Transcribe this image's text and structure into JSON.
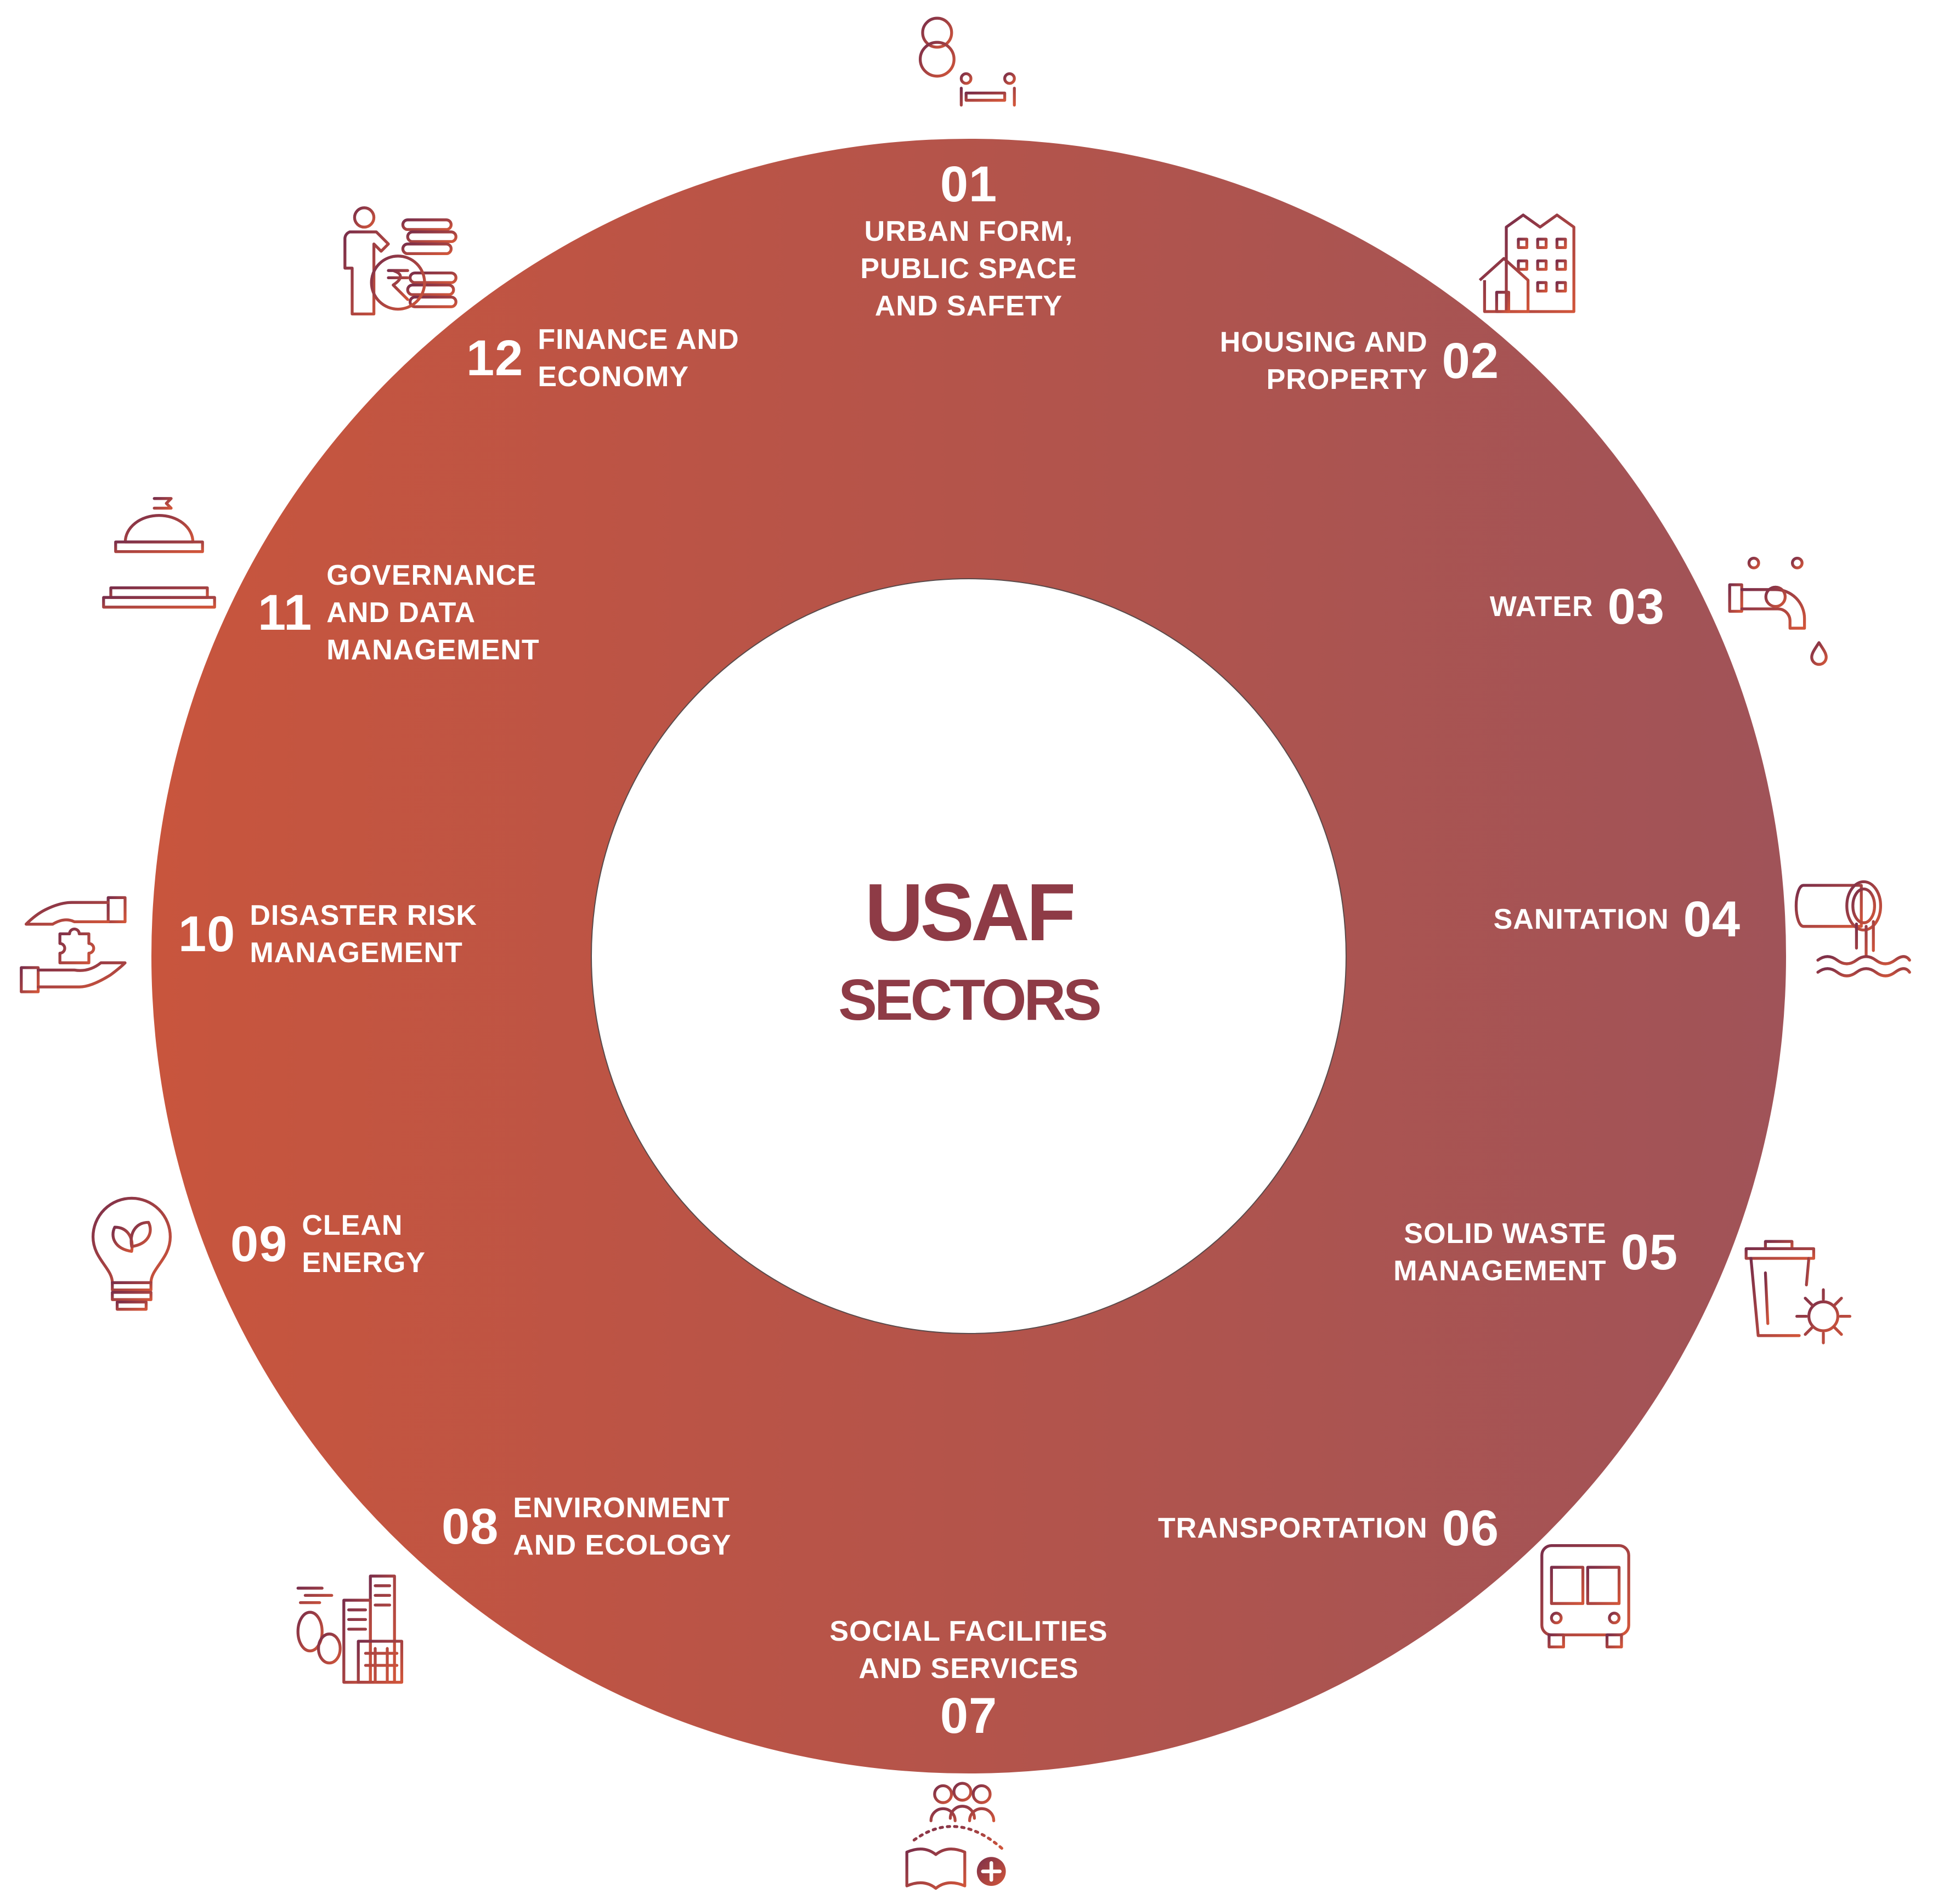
{
  "title": {
    "line1": "USAF",
    "line2": "SECTORS"
  },
  "colors": {
    "ring_left": "#C8553D",
    "ring_right": "#A05358",
    "title": "#8E3B46",
    "icon_a": "#7A2E4A",
    "icon_b": "#D2563A",
    "text": "#FFFFFF"
  },
  "sectors": [
    {
      "number": "01",
      "label": "URBAN FORM,\nPUBLIC SPACE\nAND SAFETY",
      "icon": "park-bench-icon"
    },
    {
      "number": "02",
      "label": "HOUSING AND\nPROPERTY",
      "icon": "housing-icon"
    },
    {
      "number": "03",
      "label": "WATER",
      "icon": "water-tap-icon"
    },
    {
      "number": "04",
      "label": "SANITATION",
      "icon": "drain-pipe-icon"
    },
    {
      "number": "05",
      "label": "SOLID WASTE\nMANAGEMENT",
      "icon": "waste-bin-gear-icon"
    },
    {
      "number": "06",
      "label": "TRANSPORTATION",
      "icon": "bus-icon"
    },
    {
      "number": "07",
      "label": "SOCIAL FACILITIES\nAND SERVICES",
      "icon": "social-services-icon"
    },
    {
      "number": "08",
      "label": "ENVIRONMENT\nAND ECOLOGY",
      "icon": "city-trees-icon"
    },
    {
      "number": "09",
      "label": "CLEAN\nENERGY",
      "icon": "lightbulb-leaf-icon"
    },
    {
      "number": "10",
      "label": "DISASTER RISK\nMANAGEMENT",
      "icon": "hands-puzzle-icon"
    },
    {
      "number": "11",
      "label": "GOVERNANCE\nAND DATA\nMANAGEMENT",
      "icon": "government-building-icon"
    },
    {
      "number": "12",
      "label": "FINANCE AND\nECONOMY",
      "icon": "finance-coins-icon"
    }
  ]
}
